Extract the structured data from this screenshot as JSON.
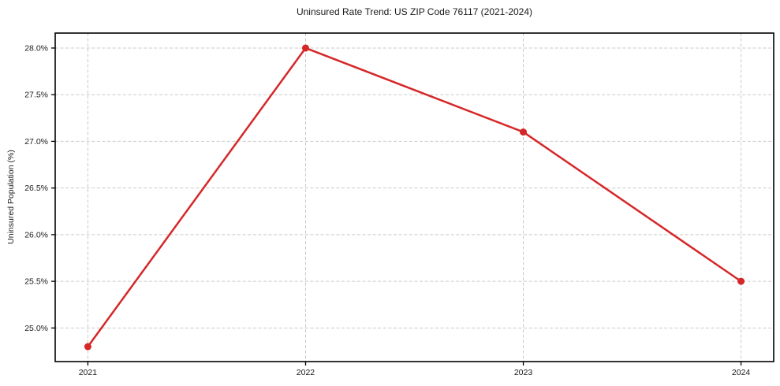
{
  "page": {
    "background": "#ffffff"
  },
  "chart_data": {
    "type": "line",
    "title": "Uninsured Rate Trend: US ZIP Code 76117 (2021-2024)",
    "xlabel": "",
    "ylabel": "Uninsured Population (%)",
    "x": [
      2021,
      2022,
      2023,
      2024
    ],
    "values": [
      24.8,
      28.0,
      27.1,
      25.5
    ],
    "xticks": [
      2021,
      2022,
      2023,
      2024
    ],
    "xtick_labels": [
      "2021",
      "2022",
      "2023",
      "2024"
    ],
    "yticks": [
      25.0,
      25.5,
      26.0,
      26.5,
      27.0,
      27.5,
      28.0
    ],
    "ytick_labels": [
      "25.0%",
      "25.5%",
      "26.0%",
      "26.5%",
      "27.0%",
      "27.5%",
      "28.0%"
    ],
    "xlim": [
      2020.85,
      2024.15
    ],
    "ylim": [
      24.64,
      28.16
    ],
    "grid": true,
    "grid_style": "dashed",
    "legend": "none",
    "line_color": "#d62728",
    "marker_color": "#d62728",
    "grid_color": "#c9c9c9",
    "axis_color": "#000000",
    "text_color": "#1a1a1a"
  }
}
